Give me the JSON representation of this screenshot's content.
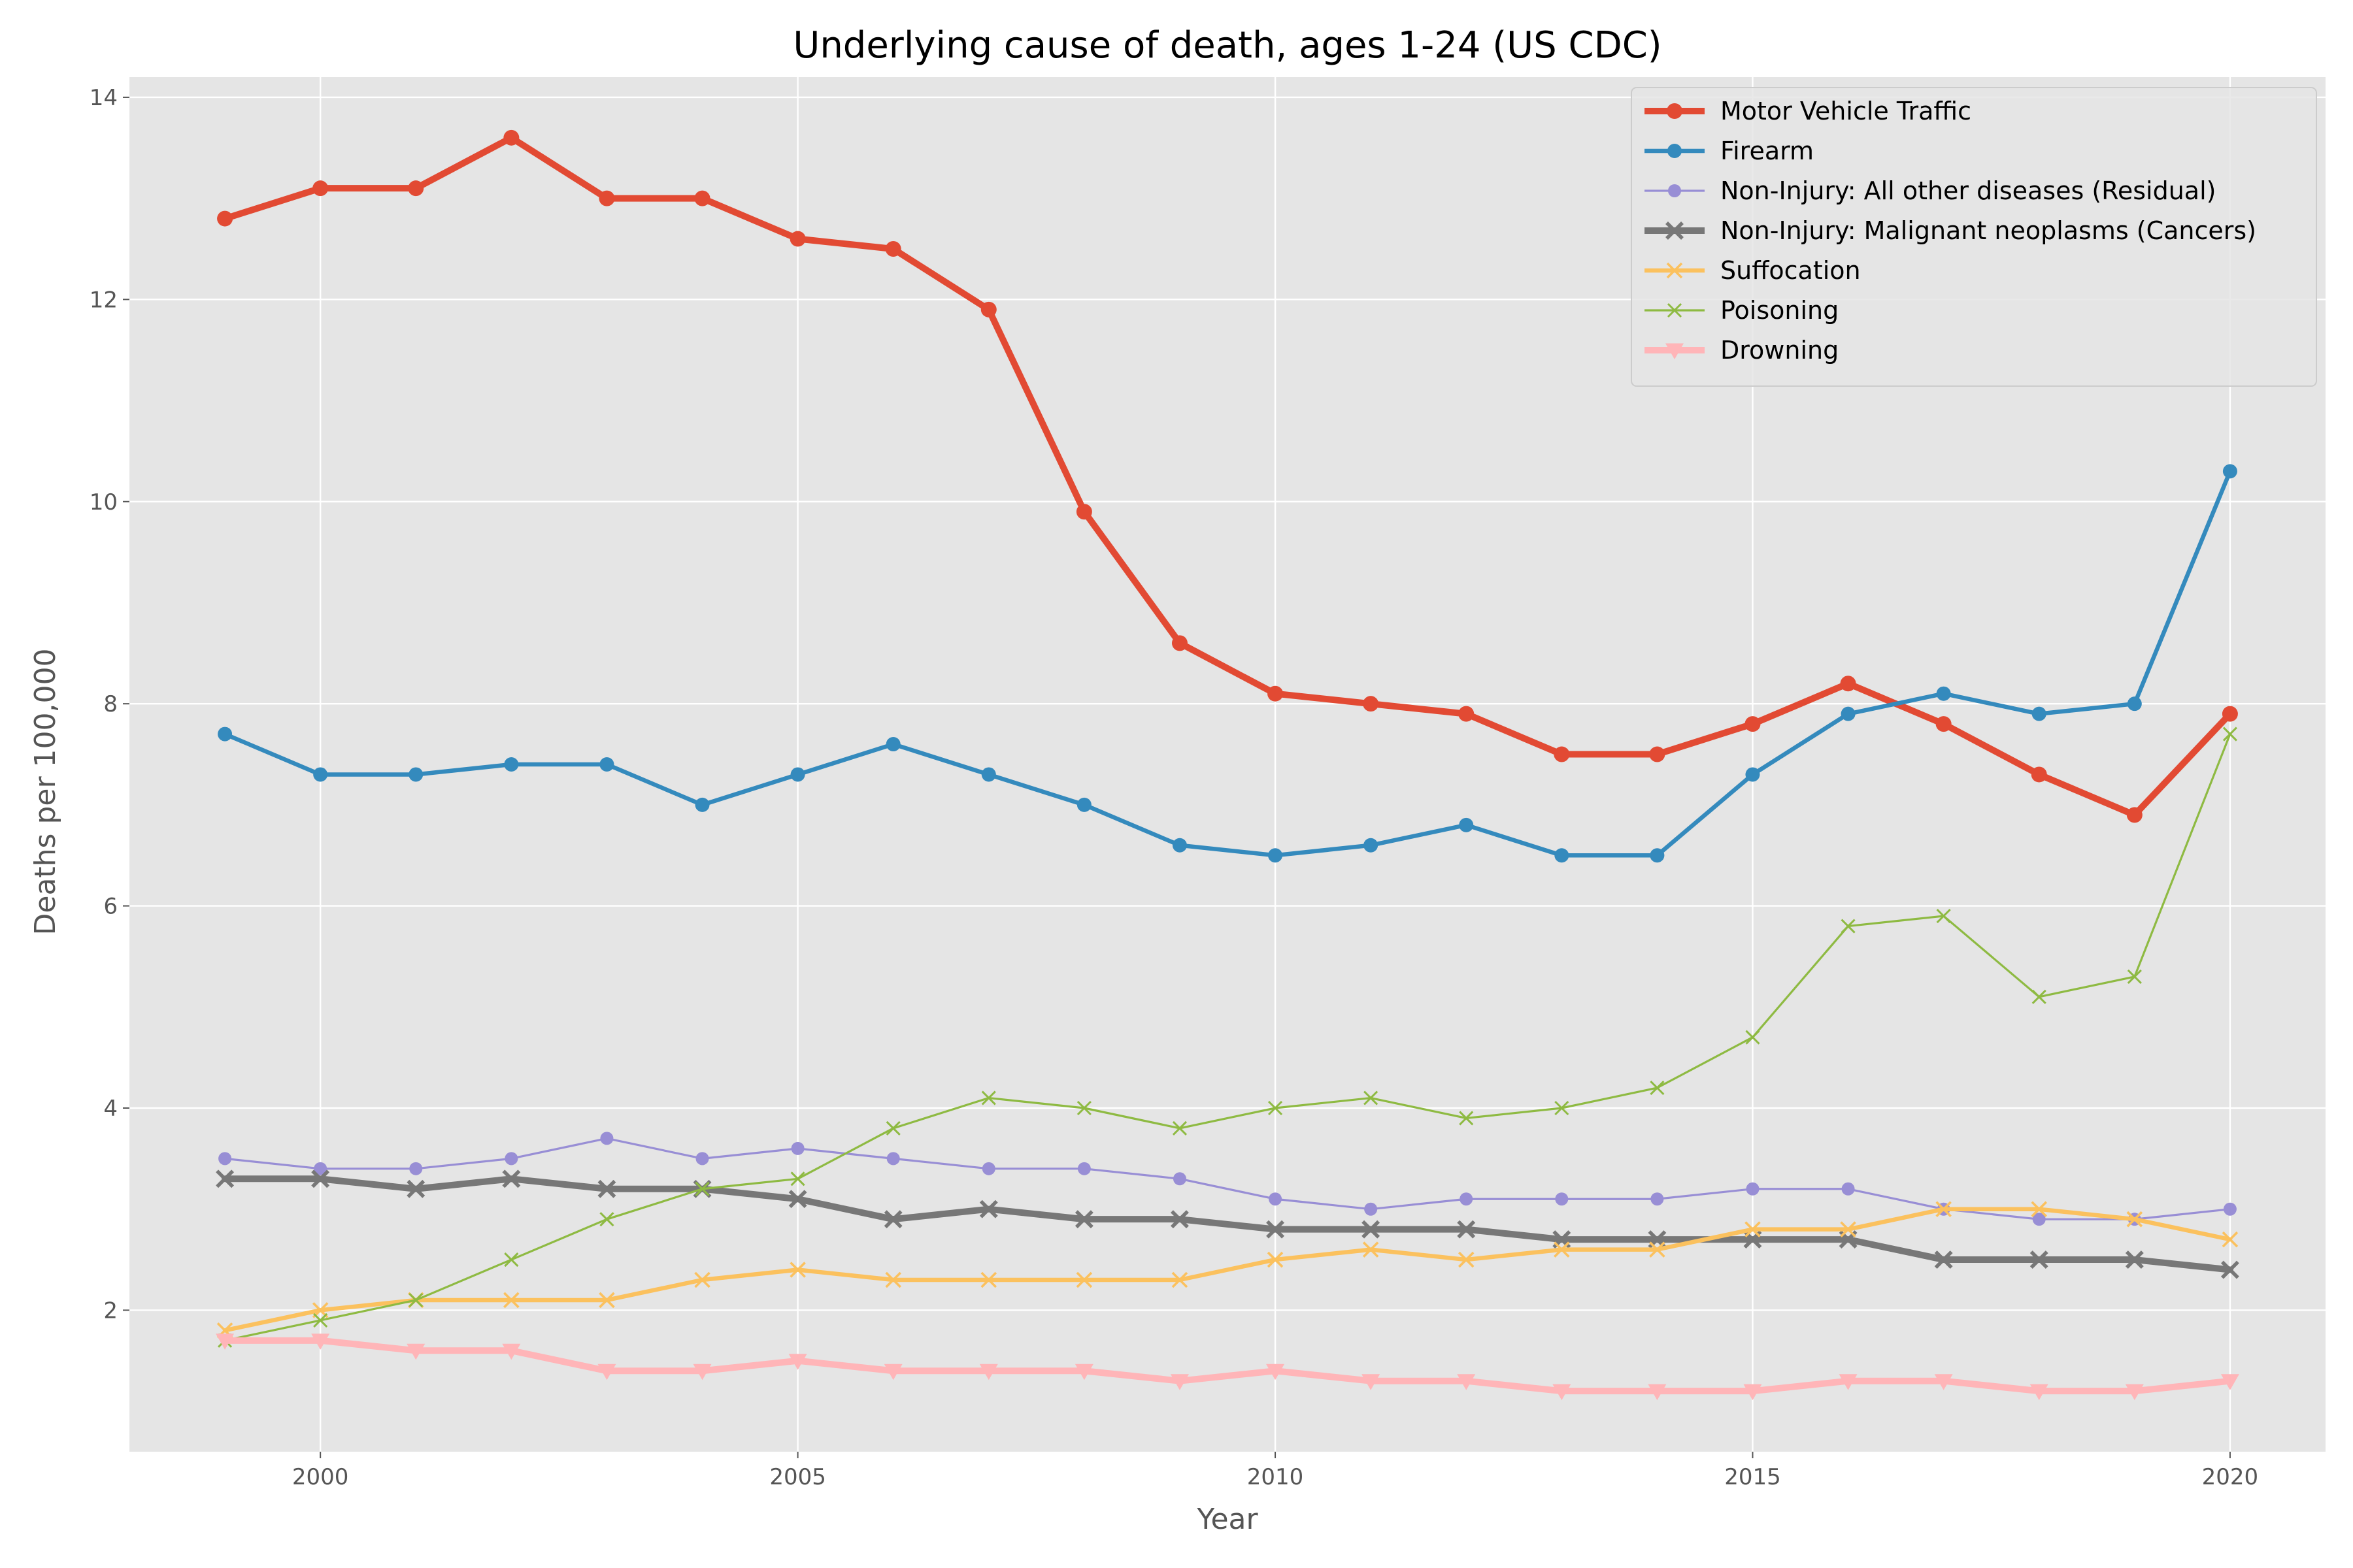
{
  "chart_data": {
    "type": "line",
    "title": "Underlying cause of death, ages 1-24 (US CDC)",
    "xlabel": "Year",
    "ylabel": "Deaths per 100,000",
    "xlim": [
      1998,
      2021
    ],
    "ylim": [
      0.6,
      14.2
    ],
    "x_ticks": [
      2000,
      2005,
      2010,
      2015,
      2020
    ],
    "y_ticks": [
      2,
      4,
      6,
      8,
      10,
      12,
      14
    ],
    "grid": true,
    "legend_position": "top-right",
    "background": "#e5e5e5",
    "x": [
      1999,
      2000,
      2001,
      2002,
      2003,
      2004,
      2005,
      2006,
      2007,
      2008,
      2009,
      2010,
      2011,
      2012,
      2013,
      2014,
      2015,
      2016,
      2017,
      2018,
      2019,
      2020
    ],
    "series": [
      {
        "name": "Motor Vehicle Traffic",
        "color": "#e24a33",
        "marker": "circle",
        "line_weight": "thick",
        "values": [
          12.8,
          13.1,
          13.1,
          13.6,
          13.0,
          13.0,
          12.6,
          12.5,
          11.9,
          9.9,
          8.6,
          8.1,
          8.0,
          7.9,
          7.5,
          7.5,
          7.8,
          8.2,
          7.8,
          7.3,
          6.9,
          7.9
        ]
      },
      {
        "name": "Firearm",
        "color": "#348abd",
        "marker": "circle",
        "line_weight": "medium",
        "values": [
          7.7,
          7.3,
          7.3,
          7.4,
          7.4,
          7.0,
          7.3,
          7.6,
          7.3,
          7.0,
          6.6,
          6.5,
          6.6,
          6.8,
          6.5,
          6.5,
          7.3,
          7.9,
          8.1,
          7.9,
          8.0,
          10.3
        ]
      },
      {
        "name": "Non-Injury: All other diseases (Residual)",
        "color": "#988ed5",
        "marker": "circle",
        "line_weight": "thin",
        "values": [
          3.5,
          3.4,
          3.4,
          3.5,
          3.7,
          3.5,
          3.6,
          3.5,
          3.4,
          3.4,
          3.3,
          3.1,
          3.0,
          3.1,
          3.1,
          3.1,
          3.2,
          3.2,
          3.0,
          2.9,
          2.9,
          3.0
        ]
      },
      {
        "name": "Non-Injury: Malignant neoplasms (Cancers)",
        "color": "#777777",
        "marker": "x",
        "line_weight": "thick",
        "values": [
          3.3,
          3.3,
          3.2,
          3.3,
          3.2,
          3.2,
          3.1,
          2.9,
          3.0,
          2.9,
          2.9,
          2.8,
          2.8,
          2.8,
          2.7,
          2.7,
          2.7,
          2.7,
          2.5,
          2.5,
          2.5,
          2.4
        ]
      },
      {
        "name": "Suffocation",
        "color": "#fbc15e",
        "marker": "x",
        "line_weight": "medium",
        "values": [
          1.8,
          2.0,
          2.1,
          2.1,
          2.1,
          2.3,
          2.4,
          2.3,
          2.3,
          2.3,
          2.3,
          2.5,
          2.6,
          2.5,
          2.6,
          2.6,
          2.8,
          2.8,
          3.0,
          3.0,
          2.9,
          2.7
        ]
      },
      {
        "name": "Poisoning",
        "color": "#8eba42",
        "marker": "x",
        "line_weight": "thin",
        "values": [
          1.7,
          1.9,
          2.1,
          2.5,
          2.9,
          3.2,
          3.3,
          3.8,
          4.1,
          4.0,
          3.8,
          4.0,
          4.1,
          3.9,
          4.0,
          4.2,
          4.7,
          5.8,
          5.9,
          5.1,
          5.3,
          7.7
        ]
      },
      {
        "name": "Drowning",
        "color": "#ffb5b8",
        "marker": "triangle-down",
        "line_weight": "thick",
        "values": [
          1.7,
          1.7,
          1.6,
          1.6,
          1.4,
          1.4,
          1.5,
          1.4,
          1.4,
          1.4,
          1.3,
          1.4,
          1.3,
          1.3,
          1.2,
          1.2,
          1.2,
          1.3,
          1.3,
          1.2,
          1.2,
          1.3
        ]
      }
    ]
  }
}
